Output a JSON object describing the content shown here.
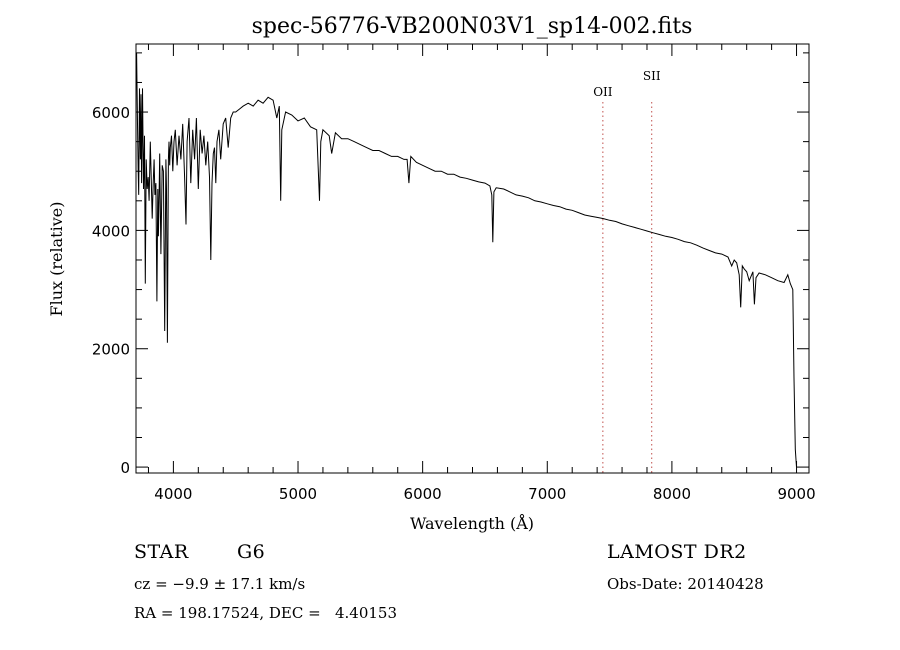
{
  "chart_data": {
    "type": "line",
    "title": "spec-56776-VB200N03V1_sp14-002.fits",
    "xlabel": "Wavelength (Å)",
    "ylabel": "Flux (relative)",
    "xlim": [
      3700,
      9100
    ],
    "ylim": [
      -100,
      7150
    ],
    "x_ticks": [
      4000,
      5000,
      6000,
      7000,
      8000,
      9000
    ],
    "y_ticks": [
      0,
      2000,
      4000,
      6000
    ],
    "grid": false,
    "line_color": "#000000",
    "marker_color": "#c0504d",
    "series": [
      {
        "x": [
          3700,
          3705,
          3712,
          3718,
          3722,
          3728,
          3735,
          3740,
          3745,
          3752,
          3760,
          3768,
          3775,
          3782,
          3790,
          3798,
          3805,
          3815,
          3822,
          3830,
          3838,
          3845,
          3852,
          3860,
          3868,
          3875,
          3880,
          3885,
          3890,
          3900,
          3910,
          3920,
          3930,
          3935,
          3940,
          3945,
          3952,
          3960,
          3965,
          3970,
          3975,
          3985,
          3995,
          4005,
          4015,
          4030,
          4045,
          4060,
          4075,
          4090,
          4101,
          4110,
          4125,
          4140,
          4155,
          4170,
          4185,
          4200,
          4215,
          4230,
          4245,
          4260,
          4275,
          4290,
          4300,
          4310,
          4320,
          4330,
          4340,
          4350,
          4365,
          4380,
          4400,
          4420,
          4440,
          4460,
          4480,
          4500,
          4530,
          4560,
          4600,
          4640,
          4680,
          4720,
          4760,
          4800,
          4830,
          4850,
          4861,
          4870,
          4900,
          4950,
          5000,
          5050,
          5100,
          5150,
          5172,
          5183,
          5200,
          5250,
          5270,
          5300,
          5350,
          5400,
          5450,
          5500,
          5550,
          5600,
          5650,
          5700,
          5750,
          5800,
          5850,
          5875,
          5890,
          5905,
          5950,
          6000,
          6050,
          6100,
          6150,
          6200,
          6250,
          6300,
          6350,
          6400,
          6450,
          6500,
          6540,
          6555,
          6563,
          6572,
          6590,
          6650,
          6700,
          6750,
          6800,
          6850,
          6900,
          6950,
          7000,
          7050,
          7100,
          7150,
          7200,
          7250,
          7300,
          7350,
          7400,
          7450,
          7500,
          7550,
          7600,
          7650,
          7700,
          7750,
          7800,
          7850,
          7900,
          7950,
          8000,
          8050,
          8100,
          8150,
          8200,
          8250,
          8300,
          8350,
          8400,
          8450,
          8480,
          8500,
          8520,
          8540,
          8552,
          8565,
          8580,
          8600,
          8620,
          8650,
          8662,
          8675,
          8700,
          8750,
          8800,
          8850,
          8900,
          8930,
          8950,
          8970,
          8980,
          8990,
          9000
        ],
        "values": [
          6500,
          7000,
          5800,
          5000,
          4600,
          6400,
          5200,
          6300,
          4800,
          6400,
          4700,
          5600,
          3100,
          5200,
          4700,
          4900,
          4500,
          5500,
          4900,
          4200,
          4800,
          5200,
          4600,
          4800,
          2800,
          4700,
          3900,
          4600,
          5300,
          3600,
          5100,
          5000,
          2300,
          3800,
          5200,
          4700,
          2100,
          5200,
          5500,
          5100,
          5400,
          5600,
          5000,
          5500,
          5700,
          5100,
          5600,
          5200,
          5800,
          4900,
          4100,
          5500,
          5900,
          4800,
          5700,
          5200,
          5900,
          4700,
          5700,
          5300,
          5600,
          5100,
          5500,
          4900,
          3500,
          4800,
          5300,
          5400,
          4800,
          5500,
          5700,
          5200,
          5800,
          5900,
          5400,
          5900,
          6000,
          6000,
          6050,
          6100,
          6150,
          6100,
          6200,
          6150,
          6250,
          6200,
          5900,
          6100,
          4500,
          5700,
          6000,
          5950,
          5850,
          5900,
          5750,
          5700,
          4500,
          5500,
          5700,
          5600,
          5300,
          5650,
          5550,
          5550,
          5500,
          5450,
          5400,
          5350,
          5350,
          5300,
          5250,
          5250,
          5200,
          5200,
          4800,
          5250,
          5150,
          5100,
          5050,
          5000,
          5000,
          4950,
          4950,
          4900,
          4880,
          4850,
          4820,
          4800,
          4750,
          4600,
          3800,
          4650,
          4720,
          4700,
          4650,
          4600,
          4580,
          4550,
          4500,
          4480,
          4450,
          4420,
          4400,
          4360,
          4340,
          4300,
          4260,
          4240,
          4220,
          4200,
          4170,
          4150,
          4110,
          4080,
          4050,
          4020,
          3990,
          3960,
          3930,
          3900,
          3880,
          3850,
          3810,
          3790,
          3750,
          3700,
          3660,
          3620,
          3600,
          3550,
          3400,
          3500,
          3450,
          3250,
          2700,
          3400,
          3350,
          3300,
          3150,
          3300,
          2750,
          3200,
          3280,
          3250,
          3200,
          3150,
          3120,
          3250,
          3100,
          3000,
          1500,
          300,
          0
        ]
      }
    ],
    "line_markers": [
      {
        "label": "OII",
        "x": 7446
      },
      {
        "label": "SII",
        "x": 7838
      }
    ]
  },
  "footer": {
    "object_type": "STAR",
    "subclass": "G6",
    "cz": "cz = −9.9 ± 17.1 km/s",
    "coords": "RA = 198.17524, DEC =   4.40153",
    "survey": "LAMOST DR2",
    "obs_date": "Obs-Date: 20140428"
  }
}
